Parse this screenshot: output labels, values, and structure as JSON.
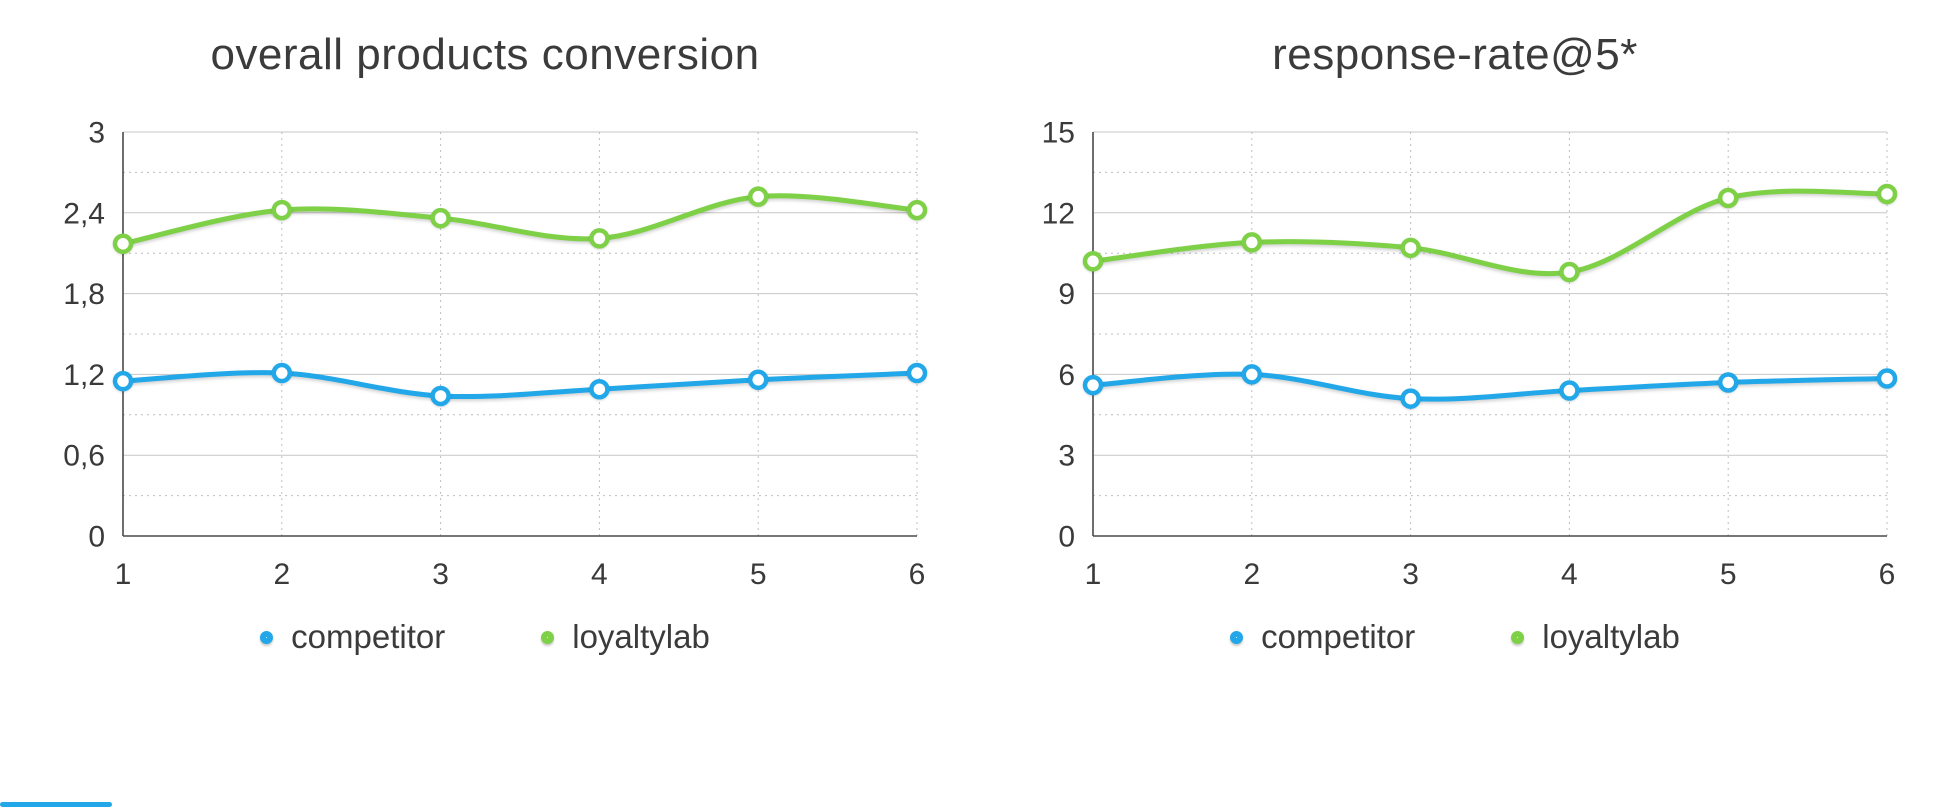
{
  "accent_colors": {
    "competitor_blue": "#22a7e8",
    "loyaltylab_green": "#7ed047"
  },
  "chart_data": [
    {
      "type": "line",
      "title": "overall products conversion",
      "x": [
        1,
        2,
        3,
        4,
        5,
        6
      ],
      "x_labels": [
        "1",
        "2",
        "3",
        "4",
        "5",
        "6"
      ],
      "ylim": [
        0,
        3
      ],
      "y_ticks": [
        0,
        0.6,
        1.2,
        1.8,
        2.4,
        3
      ],
      "y_tick_labels": [
        "0",
        "0,6",
        "1,2",
        "1,8",
        "2,4",
        "3"
      ],
      "y_minor_ticks": [
        0.3,
        0.9,
        1.5,
        2.1,
        2.7
      ],
      "grid": "major-solid-minor-dotted",
      "legend_position": "bottom",
      "series": [
        {
          "name": "competitor",
          "color": "#22a7e8",
          "values": [
            1.15,
            1.21,
            1.04,
            1.09,
            1.16,
            1.21
          ]
        },
        {
          "name": "loyaltylab",
          "color": "#7ed047",
          "values": [
            2.17,
            2.42,
            2.36,
            2.21,
            2.52,
            2.42
          ]
        }
      ]
    },
    {
      "type": "line",
      "title": "response-rate@5*",
      "x": [
        1,
        2,
        3,
        4,
        5,
        6
      ],
      "x_labels": [
        "1",
        "2",
        "3",
        "4",
        "5",
        "6"
      ],
      "ylim": [
        0,
        15
      ],
      "y_ticks": [
        0,
        3,
        6,
        9,
        12,
        15
      ],
      "y_tick_labels": [
        "0",
        "3",
        "6",
        "9",
        "12",
        "15"
      ],
      "y_minor_ticks": [
        1.5,
        4.5,
        7.5,
        10.5,
        13.5
      ],
      "grid": "major-solid-minor-dotted",
      "legend_position": "bottom",
      "series": [
        {
          "name": "competitor",
          "color": "#22a7e8",
          "values": [
            5.6,
            6.0,
            5.1,
            5.4,
            5.7,
            5.85
          ]
        },
        {
          "name": "loyaltylab",
          "color": "#7ed047",
          "values": [
            10.2,
            10.9,
            10.7,
            9.8,
            12.55,
            12.7
          ]
        }
      ]
    }
  ]
}
